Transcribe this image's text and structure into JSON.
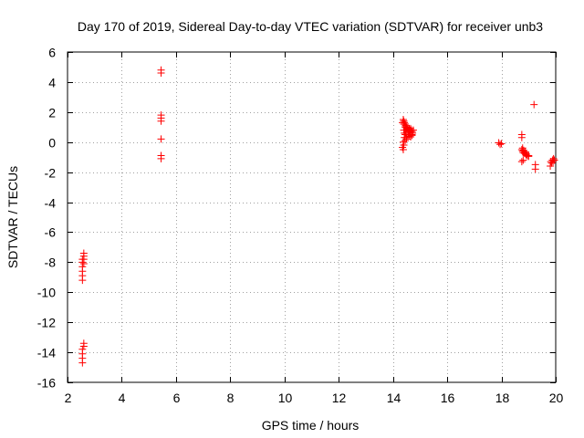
{
  "chart_data": {
    "type": "scatter",
    "title": "Day 170 of 2019, Sidereal Day-to-day VTEC variation (SDTVAR) for receiver unb3",
    "xlabel": "GPS time / hours",
    "ylabel": "SDTVAR / TECUs",
    "xlim": [
      2,
      20
    ],
    "ylim": [
      -16,
      6
    ],
    "xticks": [
      2,
      4,
      6,
      8,
      10,
      12,
      14,
      16,
      18,
      20
    ],
    "yticks": [
      -16,
      -14,
      -12,
      -10,
      -8,
      -6,
      -4,
      -2,
      0,
      2,
      4,
      6
    ],
    "grid": true,
    "marker": "+",
    "series": [
      {
        "name": "SDTVAR",
        "color": "#ff0000",
        "x": [
          2.55,
          2.55,
          2.55,
          2.55,
          2.55,
          2.55,
          2.6,
          2.6,
          2.6,
          2.6,
          2.55,
          2.55,
          2.55,
          2.55,
          2.6,
          2.6,
          5.45,
          5.45,
          5.45,
          5.45,
          5.45,
          5.45,
          5.45,
          5.45,
          14.35,
          14.38,
          14.4,
          14.4,
          14.42,
          14.45,
          14.45,
          14.48,
          14.5,
          14.5,
          14.52,
          14.55,
          14.55,
          14.58,
          14.6,
          14.6,
          14.62,
          14.65,
          14.65,
          14.68,
          14.7,
          14.7,
          14.72,
          14.75,
          14.4,
          14.42,
          14.45,
          14.5,
          14.55,
          14.6,
          14.65,
          14.7,
          14.38,
          14.4,
          14.45,
          14.5,
          14.35,
          14.38,
          14.42,
          14.48,
          17.9,
          17.95,
          18.0,
          18.75,
          18.75,
          18.75,
          18.78,
          18.8,
          18.85,
          18.9,
          18.95,
          19.0,
          18.78,
          18.82,
          18.88,
          18.92,
          18.75,
          18.8,
          19.0,
          19.2,
          19.25,
          19.25,
          19.8,
          19.82,
          19.85,
          19.88,
          19.9,
          19.92,
          19.95
        ],
        "y": [
          -9.2,
          -8.9,
          -8.6,
          -8.3,
          -8.0,
          -7.8,
          -7.6,
          -7.4,
          -7.8,
          -8.1,
          -14.7,
          -14.4,
          -14.1,
          -13.8,
          -13.6,
          -13.4,
          4.8,
          4.6,
          1.8,
          1.6,
          1.4,
          0.2,
          -0.9,
          -1.1,
          1.3,
          1.5,
          1.4,
          1.2,
          1.3,
          1.2,
          1.0,
          1.1,
          1.0,
          0.9,
          0.95,
          0.85,
          0.8,
          0.75,
          0.7,
          0.9,
          0.6,
          0.7,
          0.9,
          0.8,
          0.7,
          0.5,
          0.6,
          0.8,
          0.8,
          0.6,
          0.5,
          0.3,
          0.4,
          0.5,
          0.35,
          0.45,
          0.0,
          -0.2,
          0.1,
          0.2,
          -0.35,
          -0.5,
          0.3,
          0.6,
          -0.05,
          -0.15,
          -0.1,
          0.5,
          0.3,
          -0.5,
          -0.6,
          -0.7,
          -0.75,
          -0.85,
          -0.9,
          -0.95,
          -0.4,
          -0.55,
          -0.65,
          -0.8,
          -1.3,
          -1.2,
          -0.9,
          2.5,
          -1.5,
          -1.8,
          -1.6,
          -1.3,
          -1.4,
          -1.2,
          -1.3,
          -1.1,
          -1.2
        ]
      }
    ]
  }
}
